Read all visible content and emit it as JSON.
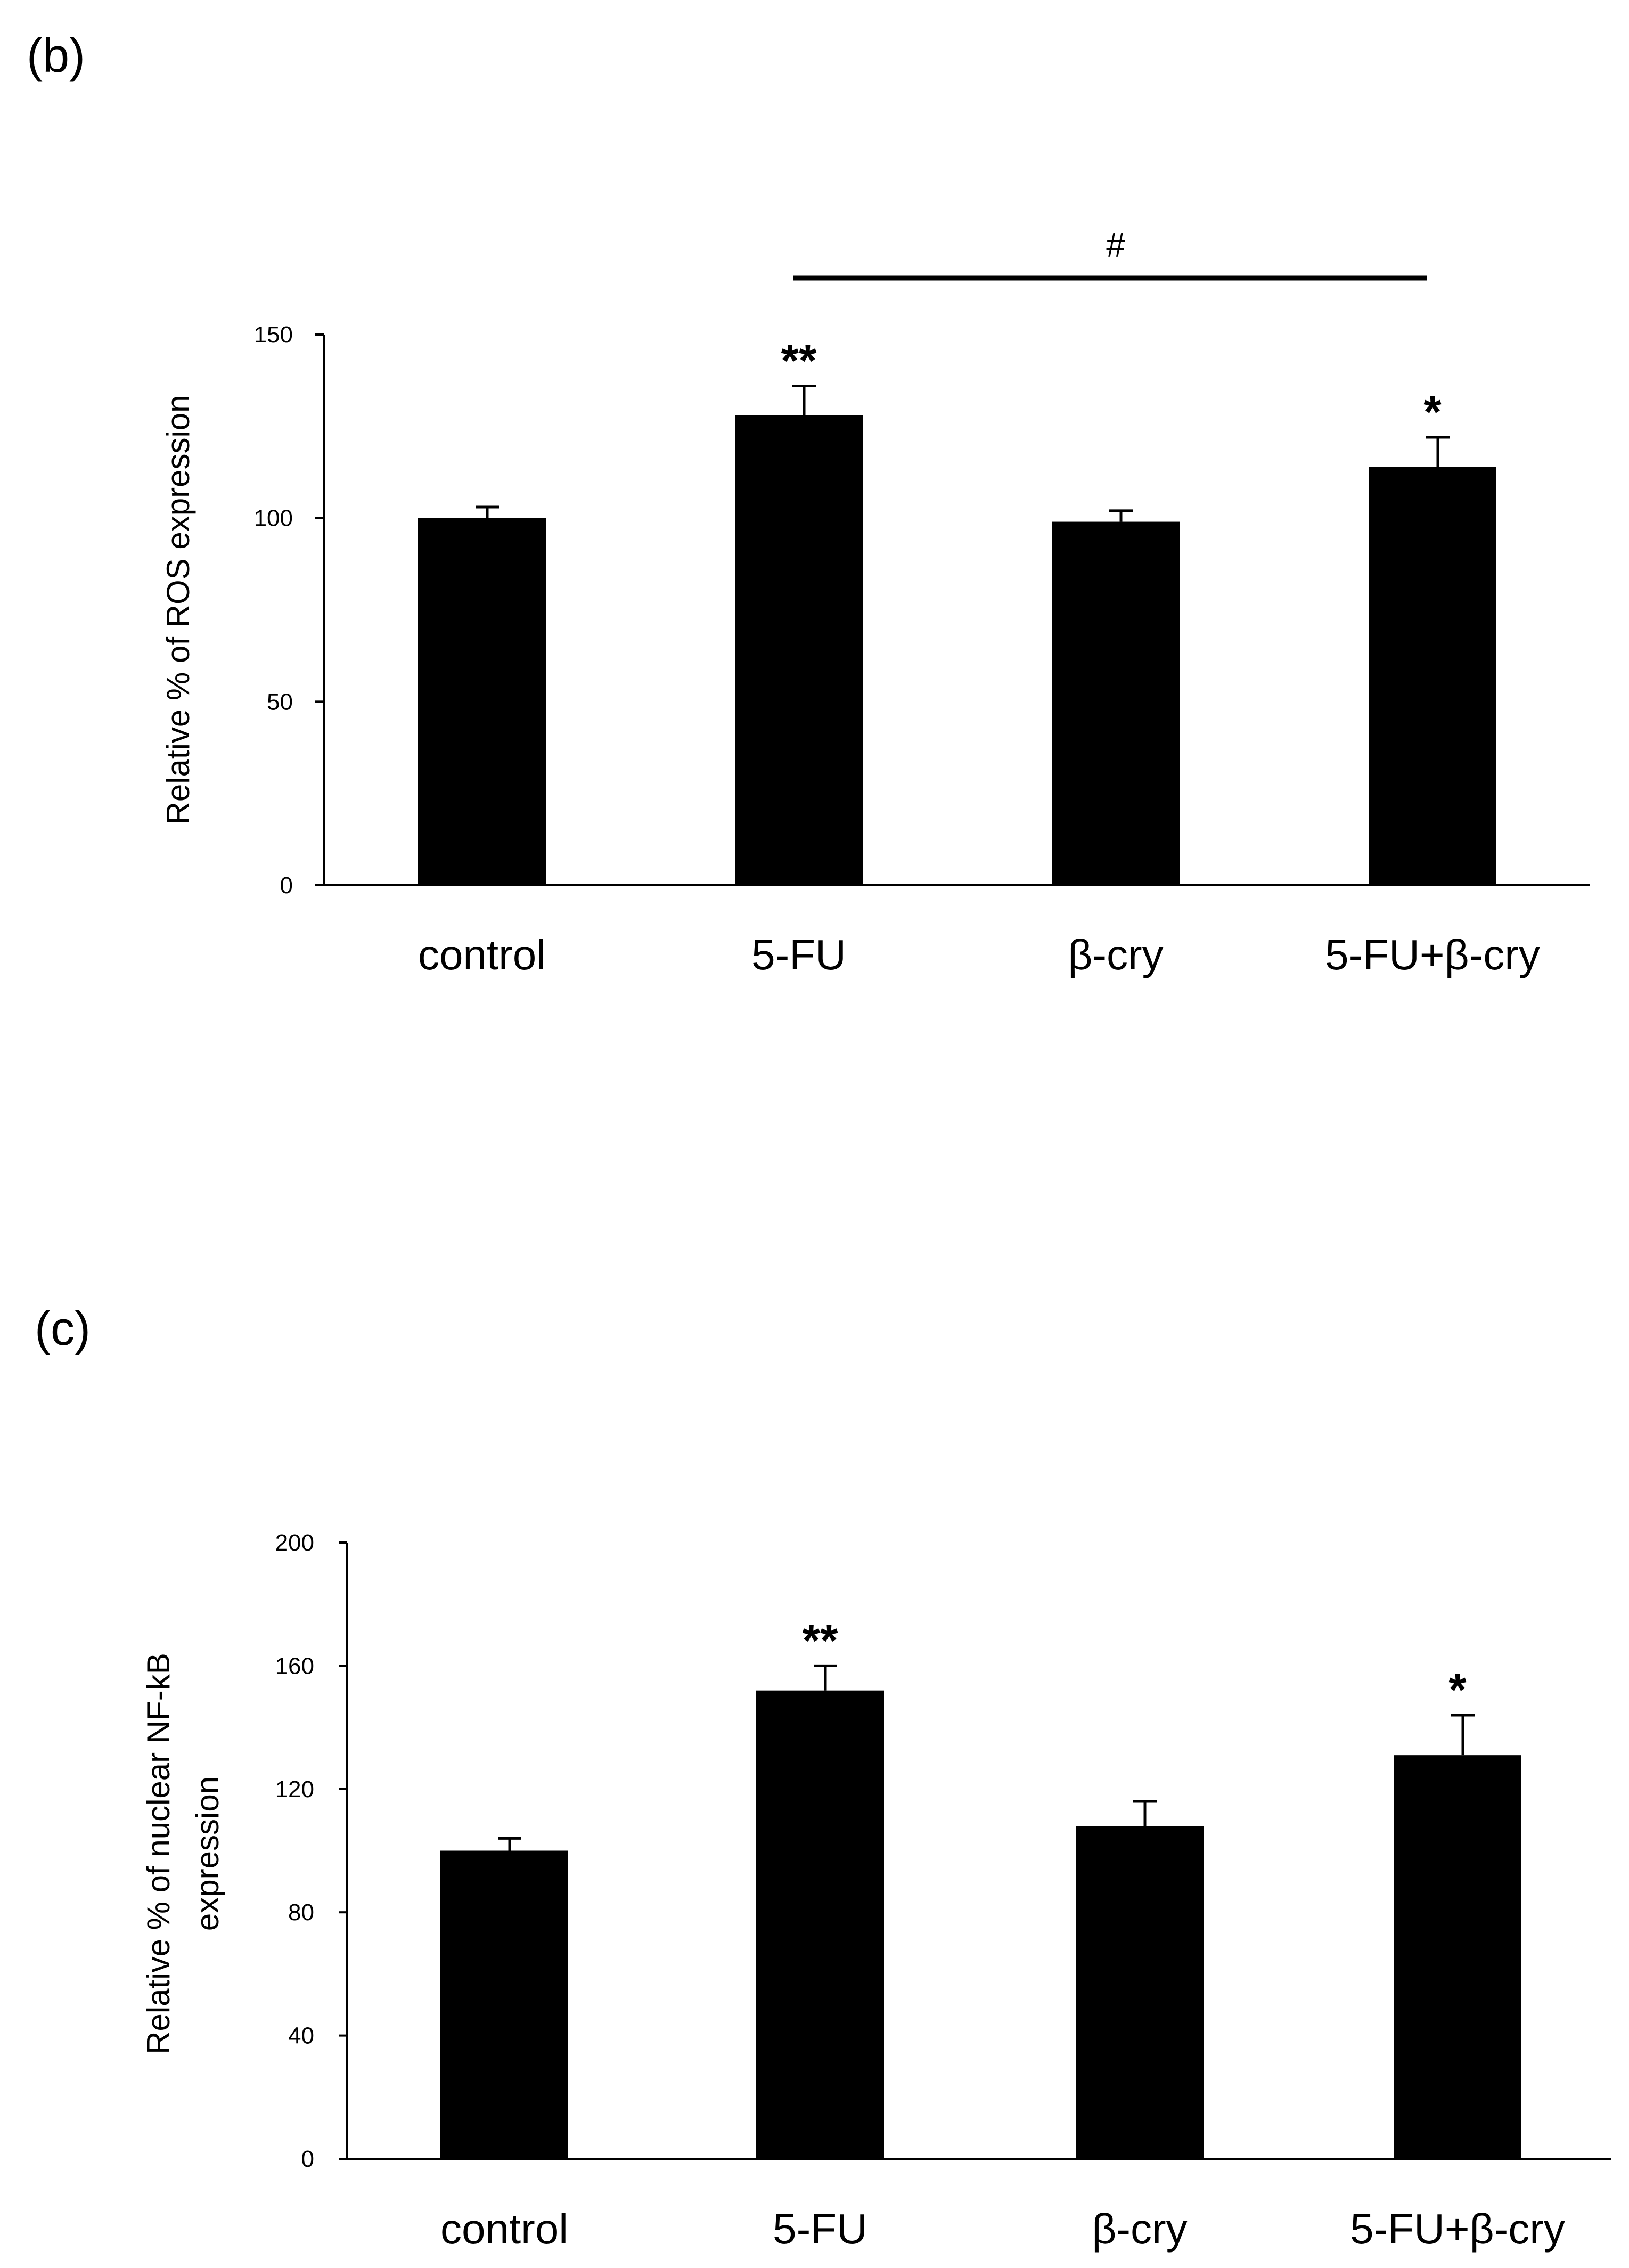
{
  "chart_data": [
    {
      "panel_label": "(b)",
      "type": "bar",
      "categories": [
        "control",
        "5-FU",
        "β-cry",
        "5-FU+β-cry"
      ],
      "values": [
        100,
        128,
        99,
        114
      ],
      "errors": [
        3,
        8,
        3,
        8
      ],
      "significance": [
        "",
        "**",
        "",
        "*"
      ],
      "comparison": {
        "from": 1,
        "to": 3,
        "label": "#"
      },
      "ylabel": "Relative % of ROS expression",
      "ylim": [
        0,
        150
      ],
      "yticks": [
        0,
        50,
        100,
        150
      ],
      "bar_color": "#000000"
    },
    {
      "panel_label": "(c)",
      "type": "bar",
      "categories": [
        "control",
        "5-FU",
        "β-cry",
        "5-FU+β-cry"
      ],
      "values": [
        100,
        152,
        108,
        131
      ],
      "errors": [
        4,
        8,
        8,
        13
      ],
      "significance": [
        "",
        "**",
        "",
        "*"
      ],
      "ylabel_lines": [
        "Relative % of nuclear NF-kB",
        "expression"
      ],
      "ylim": [
        0,
        200
      ],
      "yticks": [
        0,
        40,
        80,
        120,
        160,
        200
      ],
      "bar_color": "#000000"
    }
  ]
}
